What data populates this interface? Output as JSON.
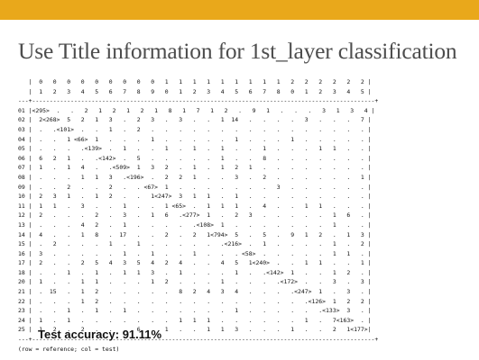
{
  "slide": {
    "title": "Use Title information for 1st_layer classification",
    "accuracy_text": "Test accuracy: 91.11%"
  },
  "matrix": {
    "col_header_1": "   |  0   0   0   0   0   0   0   0   0   1   1   1   1   1   1   1   1   1   2   2   2   2   2   2 |",
    "col_header_2": "   |  1   2   3   4   5   6   7   8   9   0   1   2   3   4   5   6   7   8   0   1   2   3   4   5 |",
    "separator": "---+--------------------------------------------------------------------------------------------------+",
    "rows": [
      "01 |<295>  .   .   2   1   2   1   2   1   8   1   7   1   2   .   9   1   .   .   .   3   1   3   4 |",
      "02 |  2<268>  5   2   1   3   .   2   3   .   3   .   .   1  14   .   .   .   .   3   .   .   .   7 |",
      "03 |  .   .<101>  .   .   1   .   2   .   .   .   .   .   .   .   .   .   .   .   .   .   .   .   . |",
      "04 |  .   .   1 <66>  1   .   .   .   1   .   .   .   .   .   1   .   .   .   1   .   .   .   .   . |",
      "05 |  .   .   .   .<139>  .   1   .   .   1   .   1   .   1   .   .   1   .   .   .   1   1   .   . |",
      "06 |  6   2   1   .   .<142>  .   5   .   .   .   .   .   1   .   .   8   .   .   .   .   .   .   . |",
      "07 |  1   .   1   4   .   .<509>  1   3   2   .   1   .   1   2   1   .   .   .   .   .   .   .   . |",
      "08 |  .   .   .   1   1   3   .<196>  .   2   2   1   .   .   3   .   2   .   .   .   .   .   .   1 |",
      "09 |  .   .   2   .   .   2   .   . <67>  1   .   .   .   .   .   .   .   3   .   .   .   .   .   . |",
      "10 |  2   3   1   .   1   2   .   .   1<247>  3   1   1   .   1   .   .   .   .   .   .   .   .   . |",
      "11 |  1   1   .   3   .   .   1   .   .   1 <65>  .   1   1   1   .   4   .   .   1   1   .   .   . |",
      "12 |  2   .   .   .   2   .   3   .   1   6   .<277>  1   .   2   3   .   .   .   .   .   1   6   . |",
      "13 |  .   .   .   4   2   .   1   .   .   .   .   .<108>  1   .   .   .   .   .   .   .   1   .   . |",
      "14 |  4   .   .   1   8   .  17   .   .   2   .   2   1<794>  5   .   5   .   9   1   2   .   1   3 |",
      "15 |  .   2   .   .   .   1   .   1   .   .   .   .   .   .<216>  .   1   .   .   .   .   1   .   2 |",
      "16 |  3   .   .   .   .   .   1   .   1   .   .   1   .   .   . <58>  .   .   .   .   .   1   1   . |",
      "17 |  2   .   .   2   5   4   3   5   4   2   4   .   .   4   5   1<240>  .   .   1   1   .   .   1 |",
      "18 |  .   .   1   .   1   .   1   1   3   .   1   .   .   .   1   .   .<142>  1   .   .   1   2   . |",
      "20 |  1   .   .   1   1   .   .   .   1   2   .   .   .   1   .   .   .   .<172>  .   .   3   .   3 |",
      "21 |  .  15   .   1   2   .   .   .   .   .   8   2   4   3   4   .   .   .   .<247>  1   .   3   . |",
      "22 |  .   .   .   1   2   .   .   .   .   .   .   .   .   .   .   .   .   .   .   .<126>  1   2   2 |",
      "23 |  .   .   1   .   1   .   1   .   .   .   .   .   .   .   1   .   .   .   .   .   .<133>  3   . |",
      "24 |  1   .   1   .   .   .   .   .   .   .   1   1   1   .   .   .   .   .   .   1   .   7<163>  . |",
      "25 |  1   2   .   2   .   .   .   6   .   1   .   .   1   1   3   .   .   .   1   .   .   2   1<177>|"
    ],
    "footer": "(row = reference; col = test)"
  }
}
